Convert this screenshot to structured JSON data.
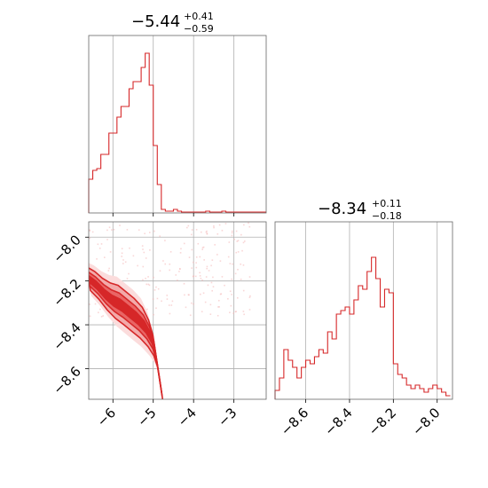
{
  "chart_data": [
    {
      "type": "histogram",
      "panel": "top-left",
      "title": {
        "median": "−5.44",
        "plus": "+0.41",
        "minus": "−0.59"
      },
      "xlim": [
        -6.6,
        -2.2
      ],
      "xticks": [
        -6,
        -5,
        -4,
        -3
      ],
      "grid": true,
      "color": "#d62728",
      "bins_x": [
        -6.6,
        -6.5,
        -6.4,
        -6.3,
        -6.2,
        -6.1,
        -6.0,
        -5.9,
        -5.8,
        -5.7,
        -5.6,
        -5.5,
        -5.4,
        -5.3,
        -5.2,
        -5.1,
        -5.0,
        -4.9,
        -4.8,
        -4.7,
        -4.6,
        -4.5,
        -4.4,
        -4.3,
        -4.2,
        -4.1,
        -4.0,
        -3.9,
        -3.8,
        -3.7,
        -3.6,
        -3.5,
        -3.4,
        -3.3,
        -3.2,
        -3.1,
        -3.0,
        -2.9,
        -2.8,
        -2.7,
        -2.6,
        -2.5,
        -2.4,
        -2.3,
        -2.2
      ],
      "counts": [
        0.19,
        0.24,
        0.25,
        0.33,
        0.33,
        0.45,
        0.45,
        0.54,
        0.6,
        0.6,
        0.7,
        0.74,
        0.74,
        0.82,
        0.9,
        0.72,
        0.38,
        0.16,
        0.02,
        0.01,
        0.01,
        0.02,
        0.01,
        0.005,
        0.005,
        0.005,
        0.005,
        0.005,
        0.005,
        0.01,
        0.005,
        0.005,
        0.005,
        0.01,
        0.005,
        0.005,
        0.005,
        0.005,
        0.005,
        0.005,
        0.005,
        0.005,
        0.005,
        0.005
      ]
    },
    {
      "type": "histogram",
      "panel": "bottom-right",
      "title": {
        "median": "−8.34",
        "plus": "+0.11",
        "minus": "−0.18"
      },
      "xlim": [
        -8.74,
        -7.93
      ],
      "xticks": [
        -8.6,
        -8.4,
        -8.2,
        -8.0
      ],
      "xticklabels": [
        "−8.6",
        "−8.4",
        "−8.2",
        "−8.0"
      ],
      "grid": true,
      "color": "#d62728",
      "bins_x": [
        -8.74,
        -8.72,
        -8.7,
        -8.68,
        -8.66,
        -8.64,
        -8.62,
        -8.6,
        -8.58,
        -8.56,
        -8.54,
        -8.52,
        -8.5,
        -8.48,
        -8.46,
        -8.44,
        -8.42,
        -8.4,
        -8.38,
        -8.36,
        -8.34,
        -8.32,
        -8.3,
        -8.28,
        -8.26,
        -8.24,
        -8.22,
        -8.2,
        -8.18,
        -8.16,
        -8.14,
        -8.12,
        -8.1,
        -8.08,
        -8.06,
        -8.04,
        -8.02,
        -8.0,
        -7.98,
        -7.96,
        -7.94
      ],
      "counts": [
        0.05,
        0.12,
        0.28,
        0.22,
        0.18,
        0.12,
        0.18,
        0.22,
        0.2,
        0.24,
        0.28,
        0.26,
        0.38,
        0.34,
        0.48,
        0.5,
        0.52,
        0.48,
        0.56,
        0.64,
        0.62,
        0.72,
        0.8,
        0.68,
        0.52,
        0.62,
        0.6,
        0.2,
        0.14,
        0.12,
        0.08,
        0.06,
        0.08,
        0.06,
        0.04,
        0.06,
        0.08,
        0.06,
        0.04,
        0.02
      ]
    },
    {
      "type": "scatter-contour",
      "panel": "bottom-left",
      "xlim": [
        -6.6,
        -2.2
      ],
      "ylim": [
        -8.74,
        -7.93
      ],
      "xticks": [
        -6,
        -5,
        -4,
        -3
      ],
      "xticklabels": [
        "−6",
        "−5",
        "−4",
        "−3"
      ],
      "yticks": [
        -8.0,
        -8.2,
        -8.4,
        -8.6
      ],
      "yticklabels": [
        "−8.0",
        "−8.2",
        "−8.4",
        "−8.6"
      ],
      "grid": true,
      "color": "#d62728",
      "ridge": [
        [
          -6.6,
          -8.19
        ],
        [
          -6.4,
          -8.22
        ],
        [
          -6.2,
          -8.26
        ],
        [
          -6.0,
          -8.29
        ],
        [
          -5.8,
          -8.31
        ],
        [
          -5.6,
          -8.34
        ],
        [
          -5.4,
          -8.37
        ],
        [
          -5.2,
          -8.41
        ],
        [
          -5.05,
          -8.46
        ],
        [
          -4.95,
          -8.52
        ],
        [
          -4.9,
          -8.58
        ],
        [
          -4.85,
          -8.64
        ],
        [
          -4.8,
          -8.7
        ]
      ],
      "halfwidth": [
        0.03,
        0.035,
        0.04,
        0.045,
        0.05,
        0.05,
        0.05,
        0.05,
        0.045,
        0.04,
        0.035,
        0.03,
        0.025
      ]
    }
  ]
}
